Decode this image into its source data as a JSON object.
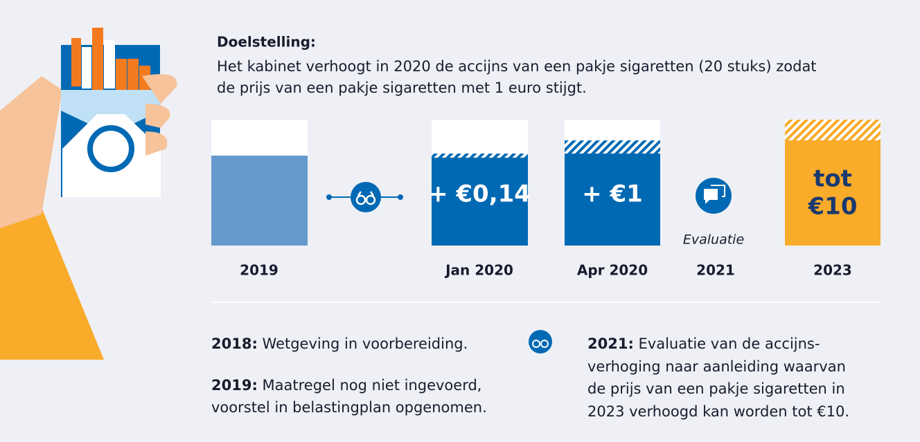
{
  "header": {
    "title": "Doelstelling:",
    "text": [
      "Het kabinet verhoogt in 2020 de accijns van een pakje sigaretten (20 stuks) zodat",
      "de prijs van een pakje sigaretten met 1 euro stijgt."
    ]
  },
  "timeline": [
    {
      "label": "2019"
    },
    {
      "label": "Jan 2020",
      "text": [
        "+ €0,14"
      ]
    },
    {
      "label": "Apr 2020",
      "text": [
        "+ €1"
      ]
    },
    {
      "label": "2021",
      "text": [
        "Evaluatie"
      ]
    },
    {
      "label": "2023",
      "text": [
        "tot",
        "€10"
      ]
    }
  ],
  "notes": [
    {
      "year": "2018:",
      "lines": [
        " Wetgeving in voorbereiding."
      ]
    },
    {
      "year": "2019:",
      "lines": [
        " Maatregel nog niet ingevoerd,",
        "voorstel in belastingplan opgenomen."
      ]
    },
    {
      "year": "2021:",
      "lines": [
        " Evaluatie van de accijns-",
        "verhoging naar aanleiding waarvan",
        "de prijs van een pakje sigaretten in",
        "2023 verhoogd kan worden tot €10."
      ]
    }
  ]
}
